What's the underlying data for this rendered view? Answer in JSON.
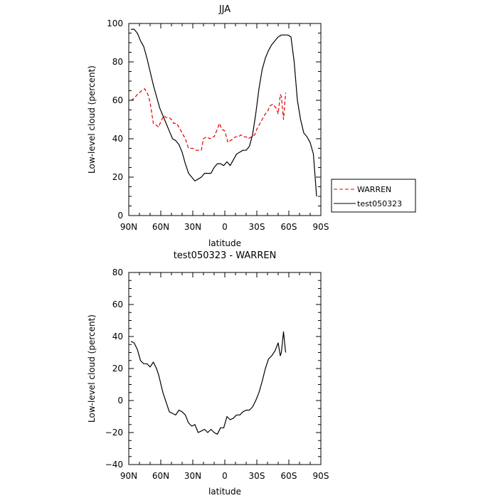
{
  "chart_data": [
    {
      "type": "line",
      "title": "JJA",
      "xlabel": "latitude",
      "ylabel": "Low-level cloud (percent)",
      "xlim": [
        90,
        -90
      ],
      "ylim": [
        0,
        100
      ],
      "xticks": [
        90,
        60,
        30,
        0,
        -30,
        -60,
        -90
      ],
      "xtick_labels": [
        "90N",
        "60N",
        "30N",
        "0",
        "30S",
        "60S",
        "90S"
      ],
      "yticks": [
        0,
        20,
        40,
        60,
        80,
        100
      ],
      "ytick_labels": [
        "0",
        "20",
        "40",
        "60",
        "80",
        "100"
      ],
      "legend": "right",
      "series": [
        {
          "name": "WARREN",
          "color": "#e00000",
          "dash": "dashed",
          "x": [
            88,
            85,
            82,
            78,
            75,
            72,
            70,
            67,
            64,
            62,
            60,
            57,
            55,
            52,
            50,
            48,
            45,
            42,
            40,
            37,
            34,
            32,
            30,
            27,
            25,
            22,
            20,
            17,
            14,
            12,
            10,
            7,
            5,
            3,
            0,
            -3,
            -5,
            -8,
            -10,
            -13,
            -15,
            -18,
            -20,
            -22,
            -25,
            -28,
            -30,
            -32,
            -35,
            -38,
            -40,
            -42,
            -45,
            -48,
            -50,
            -52,
            -53,
            -55,
            -57
          ],
          "y": [
            60,
            61,
            63,
            65,
            66,
            63,
            59,
            48,
            47,
            46,
            49,
            52,
            51,
            51,
            50,
            48,
            48,
            45,
            43,
            40,
            35,
            35,
            35,
            34,
            34,
            34,
            40,
            41,
            40,
            41,
            41,
            45,
            48,
            45,
            44,
            38,
            39,
            40,
            41,
            41,
            42,
            41,
            41,
            40,
            41,
            42,
            45,
            47,
            50,
            53,
            54,
            57,
            58,
            56,
            53,
            63,
            62,
            50,
            64
          ]
        },
        {
          "name": "test050323",
          "color": "#000000",
          "dash": "solid",
          "x": [
            88,
            85,
            82,
            79,
            76,
            73,
            70,
            67,
            64,
            61,
            58,
            55,
            52,
            49,
            46,
            43,
            40,
            37,
            34,
            31,
            28,
            25,
            22,
            19,
            16,
            13,
            10,
            7,
            4,
            1,
            -2,
            -5,
            -8,
            -11,
            -14,
            -17,
            -20,
            -23,
            -26,
            -29,
            -32,
            -35,
            -38,
            -41,
            -44,
            -47,
            -50,
            -53,
            -56,
            -59,
            -62,
            -65,
            -68,
            -71,
            -74,
            -77,
            -80,
            -83,
            -86
          ],
          "y": [
            97,
            97,
            95,
            91,
            88,
            82,
            75,
            68,
            62,
            56,
            52,
            48,
            44,
            40,
            39,
            37,
            33,
            27,
            22,
            20,
            18,
            19,
            20,
            22,
            22,
            22,
            25,
            27,
            27,
            26,
            28,
            26,
            29,
            32,
            33,
            34,
            34,
            36,
            42,
            53,
            66,
            76,
            82,
            86,
            89,
            91,
            93,
            94,
            94,
            94,
            93,
            80,
            60,
            50,
            43,
            41,
            38,
            32,
            10
          ]
        }
      ]
    },
    {
      "type": "line",
      "title": "test050323 - WARREN",
      "xlabel": "latitude",
      "ylabel": "Low-level cloud (percent)",
      "xlim": [
        90,
        -90
      ],
      "ylim": [
        -40,
        80
      ],
      "xticks": [
        90,
        60,
        30,
        0,
        -30,
        -60,
        -90
      ],
      "xtick_labels": [
        "90N",
        "60N",
        "30N",
        "0",
        "30S",
        "60S",
        "90S"
      ],
      "yticks": [
        -40,
        -20,
        0,
        20,
        40,
        60,
        80
      ],
      "ytick_labels": [
        "−40",
        "−20",
        "0",
        "20",
        "40",
        "60",
        "80"
      ],
      "series": [
        {
          "color": "#000000",
          "dash": "solid",
          "x": [
            88,
            85,
            82,
            79,
            76,
            73,
            70,
            67,
            64,
            62,
            58,
            55,
            52,
            49,
            46,
            43,
            40,
            37,
            34,
            31,
            28,
            25,
            22,
            19,
            16,
            13,
            10,
            7,
            4,
            1,
            -2,
            -5,
            -8,
            -11,
            -14,
            -17,
            -20,
            -23,
            -26,
            -29,
            -32,
            -35,
            -38,
            -41,
            -44,
            -47,
            -50,
            -52,
            -53,
            -55,
            -57
          ],
          "y": [
            37,
            36,
            32,
            25,
            23,
            23,
            21,
            24,
            20,
            16,
            5,
            -1,
            -7,
            -8,
            -9,
            -6,
            -7,
            -9,
            -14,
            -16,
            -15,
            -20,
            -19,
            -18,
            -20,
            -18,
            -20,
            -21,
            -17,
            -17,
            -10,
            -12,
            -11,
            -9,
            -9,
            -7,
            -6,
            -6,
            -4,
            0,
            5,
            12,
            20,
            26,
            28,
            31,
            36,
            28,
            30,
            43,
            30
          ]
        }
      ]
    }
  ]
}
